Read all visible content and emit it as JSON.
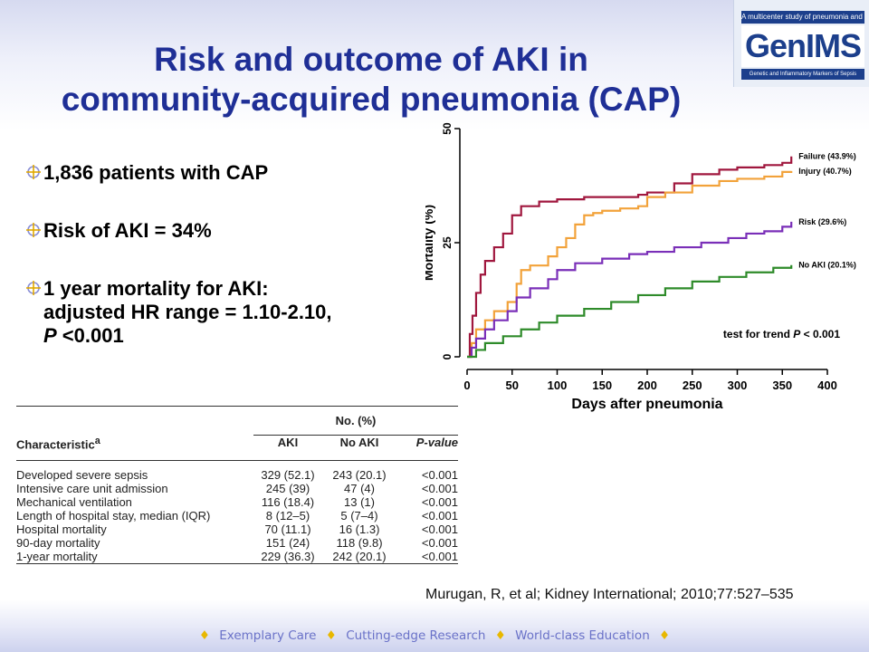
{
  "slide": {
    "title_line1": "Risk and outcome of AKI in",
    "title_line2": "community-acquired pneumonia (CAP)"
  },
  "logo": {
    "tagline": "A multicenter study of pneumonia and sepsis",
    "name": "GenIMS",
    "subtitle": "Genetic and Inflammatory Markers of Sepsis"
  },
  "bullets": [
    {
      "text": "1,836 patients with CAP"
    },
    {
      "text": "Risk of AKI = 34%"
    },
    {
      "line1": "1 year mortality for AKI:",
      "line2": "adjusted HR range = 1.10-2.10,",
      "line3_italic": "P",
      "line3_rest": " <0.001"
    }
  ],
  "table": {
    "header_group": "No. (%)",
    "col_characteristic": "Characteristic",
    "col_characteristic_sup": "a",
    "col_aki": "AKI",
    "col_no_aki": "No AKI",
    "col_p": "P-value",
    "rows": [
      {
        "label": "Developed severe sepsis",
        "aki": "329 (52.1)",
        "no_aki": "243 (20.1)",
        "p": "<0.001"
      },
      {
        "label": "Intensive care unit admission",
        "aki": "245 (39)",
        "no_aki": "47 (4)",
        "p": "<0.001"
      },
      {
        "label": "Mechanical ventilation",
        "aki": "116 (18.4)",
        "no_aki": "13 (1)",
        "p": "<0.001"
      },
      {
        "label": "Length of hospital stay, median (IQR)",
        "aki": "8 (12–5)",
        "no_aki": "5 (7–4)",
        "p": "<0.001"
      },
      {
        "label": "Hospital mortality",
        "aki": "70 (11.1)",
        "no_aki": "16 (1.3)",
        "p": "<0.001"
      },
      {
        "label": "90-day mortality",
        "aki": "151 (24)",
        "no_aki": "118 (9.8)",
        "p": "<0.001"
      },
      {
        "label": "1-year mortality",
        "aki": "229 (36.3)",
        "no_aki": "242 (20.1)",
        "p": "<0.001"
      }
    ]
  },
  "citation": "Murugan, R, et al; Kidney International; 2010;77:527–535",
  "footer": {
    "items": [
      "Exemplary Care",
      "Cutting-edge Research",
      "World-class Education"
    ]
  },
  "chart_data": {
    "type": "line",
    "xlabel": "Days after pneumonia",
    "ylabel": "Mortality (%)",
    "xlim": [
      0,
      400
    ],
    "ylim": [
      0,
      50
    ],
    "xticks": [
      0,
      50,
      100,
      150,
      200,
      250,
      300,
      350,
      400
    ],
    "yticks": [
      0,
      25,
      50
    ],
    "annotation": {
      "prefix": "test for trend ",
      "italic": "P",
      "suffix": " < 0.001"
    },
    "series": [
      {
        "name": "Failure (43.9%)",
        "color": "#a0173e",
        "points": [
          [
            0,
            0
          ],
          [
            3,
            5
          ],
          [
            6,
            9
          ],
          [
            10,
            14
          ],
          [
            15,
            18
          ],
          [
            20,
            21
          ],
          [
            30,
            24
          ],
          [
            40,
            27
          ],
          [
            50,
            31
          ],
          [
            60,
            33
          ],
          [
            80,
            34
          ],
          [
            100,
            34.5
          ],
          [
            130,
            35
          ],
          [
            170,
            35
          ],
          [
            190,
            35.5
          ],
          [
            200,
            36
          ],
          [
            230,
            38
          ],
          [
            250,
            40
          ],
          [
            280,
            41
          ],
          [
            300,
            41.5
          ],
          [
            330,
            42
          ],
          [
            350,
            42.5
          ],
          [
            360,
            43.9
          ]
        ]
      },
      {
        "name": "Injury (40.7%)",
        "color": "#f2a23a",
        "points": [
          [
            0,
            0
          ],
          [
            5,
            3
          ],
          [
            10,
            6
          ],
          [
            20,
            8
          ],
          [
            30,
            10
          ],
          [
            45,
            12
          ],
          [
            55,
            16
          ],
          [
            60,
            19
          ],
          [
            70,
            20
          ],
          [
            90,
            22
          ],
          [
            100,
            24
          ],
          [
            110,
            26
          ],
          [
            120,
            29
          ],
          [
            130,
            31
          ],
          [
            140,
            31.5
          ],
          [
            150,
            32
          ],
          [
            170,
            32.5
          ],
          [
            190,
            33
          ],
          [
            200,
            35
          ],
          [
            220,
            36
          ],
          [
            250,
            37.5
          ],
          [
            280,
            38.5
          ],
          [
            300,
            39
          ],
          [
            330,
            39.5
          ],
          [
            350,
            40.5
          ],
          [
            360,
            40.7
          ]
        ]
      },
      {
        "name": "Risk (29.6%)",
        "color": "#7a2fb8",
        "points": [
          [
            0,
            0
          ],
          [
            5,
            2
          ],
          [
            10,
            4
          ],
          [
            20,
            6
          ],
          [
            30,
            8
          ],
          [
            45,
            10
          ],
          [
            55,
            13
          ],
          [
            70,
            15
          ],
          [
            90,
            17
          ],
          [
            100,
            19
          ],
          [
            120,
            20.5
          ],
          [
            150,
            21.5
          ],
          [
            180,
            22.5
          ],
          [
            200,
            23
          ],
          [
            230,
            24
          ],
          [
            260,
            25
          ],
          [
            290,
            26
          ],
          [
            310,
            27
          ],
          [
            330,
            27.5
          ],
          [
            350,
            28.5
          ],
          [
            360,
            29.6
          ]
        ]
      },
      {
        "name": "No AKI (20.1%)",
        "color": "#2e8b2a",
        "points": [
          [
            0,
            0
          ],
          [
            10,
            1.5
          ],
          [
            20,
            3
          ],
          [
            40,
            4.5
          ],
          [
            60,
            6
          ],
          [
            80,
            7.5
          ],
          [
            100,
            9
          ],
          [
            130,
            10.5
          ],
          [
            160,
            12
          ],
          [
            190,
            13.5
          ],
          [
            220,
            15
          ],
          [
            250,
            16.5
          ],
          [
            280,
            17.5
          ],
          [
            310,
            18.5
          ],
          [
            340,
            19.5
          ],
          [
            360,
            20.1
          ]
        ]
      }
    ]
  }
}
